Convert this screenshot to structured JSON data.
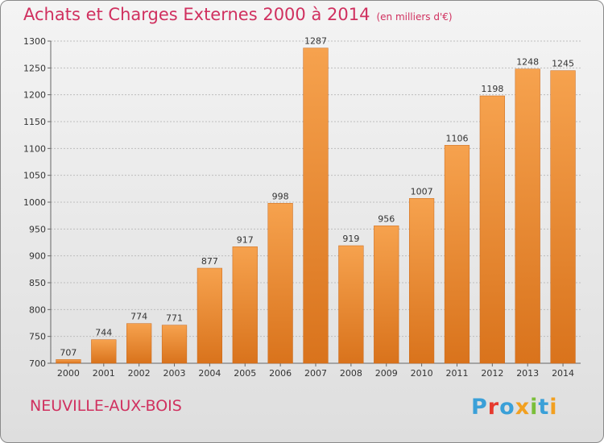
{
  "chart_data": {
    "type": "bar",
    "title": "Achats et Charges Externes 2000 à 2014",
    "subtitle": "(en milliers d'€)",
    "categories": [
      "2000",
      "2001",
      "2002",
      "2003",
      "2004",
      "2005",
      "2006",
      "2007",
      "2008",
      "2009",
      "2010",
      "2011",
      "2012",
      "2013",
      "2014"
    ],
    "values": [
      707,
      744,
      774,
      771,
      877,
      917,
      998,
      1287,
      919,
      956,
      1007,
      1106,
      1198,
      1248,
      1245
    ],
    "ylim": [
      700,
      1300
    ],
    "yticks": [
      700,
      750,
      800,
      850,
      900,
      950,
      1000,
      1050,
      1100,
      1150,
      1200,
      1250,
      1300
    ],
    "grid": true,
    "bar_color": "#ee8c38"
  },
  "location": "NEUVILLE-AUX-BOIS",
  "logo": {
    "text": "Proxiti",
    "colors": [
      "#3aa0d8",
      "#e63a2e",
      "#3aa0d8",
      "#f2a020",
      "#7bbf3a",
      "#3aa0d8",
      "#f2a020"
    ]
  }
}
